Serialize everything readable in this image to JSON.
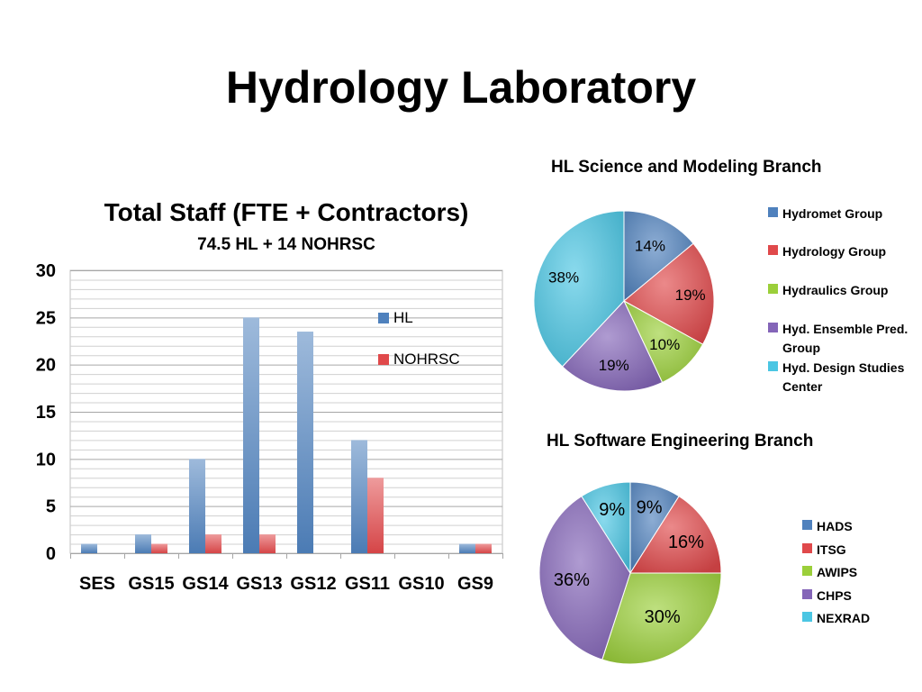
{
  "slide": {
    "title": "Hydrology Laboratory"
  },
  "colors": {
    "blue": "#4f81bd",
    "red": "#e0494b",
    "green": "#9bcf3a",
    "purple": "#8465b8",
    "cyan": "#4bc6e3"
  },
  "chart_data": [
    {
      "type": "bar",
      "title": "Total Staff (FTE + Contractors)",
      "subtitle": "74.5 HL + 14 NOHRSC",
      "categories": [
        "SES",
        "GS15",
        "GS14",
        "GS13",
        "GS12",
        "GS11",
        "GS10",
        "GS9"
      ],
      "series": [
        {
          "name": "HL",
          "color": "#4f81bd",
          "values": [
            1,
            2,
            10,
            25,
            23.5,
            12,
            0,
            1
          ]
        },
        {
          "name": "NOHRSC",
          "color": "#e0494b",
          "values": [
            0,
            1,
            2,
            2,
            0,
            8,
            0,
            1
          ]
        }
      ],
      "ylim": [
        0,
        30
      ],
      "yticks": [
        0,
        5,
        10,
        15,
        20,
        25,
        30
      ],
      "grid": true,
      "legend": "right"
    },
    {
      "type": "pie",
      "title": "HL Science and Modeling Branch",
      "slices": [
        {
          "label": "Hydromet Group",
          "value": 14,
          "text": "14%",
          "color": "#4f81bd"
        },
        {
          "label": "Hydrology Group",
          "value": 19,
          "text": "19%",
          "color": "#e0494b"
        },
        {
          "label": "Hydraulics Group",
          "value": 10,
          "text": "10%",
          "color": "#9bcf3a"
        },
        {
          "label": "Hyd. Ensemble Pred. Group",
          "value": 19,
          "text": "19%",
          "color": "#8465b8"
        },
        {
          "label": "Hyd. Design Studies Center",
          "value": 38,
          "text": "38%",
          "color": "#4bc6e3"
        }
      ],
      "legend": "right"
    },
    {
      "type": "pie",
      "title": "HL Software Engineering Branch",
      "slices": [
        {
          "label": "HADS",
          "value": 9,
          "text": "9%",
          "color": "#4f81bd"
        },
        {
          "label": "ITSG",
          "value": 16,
          "text": "16%",
          "color": "#e0494b"
        },
        {
          "label": "AWIPS",
          "value": 30,
          "text": "30%",
          "color": "#9bcf3a"
        },
        {
          "label": "CHPS",
          "value": 36,
          "text": "36%",
          "color": "#8465b8"
        },
        {
          "label": "NEXRAD",
          "value": 9,
          "text": "9%",
          "color": "#4bc6e3"
        }
      ],
      "legend": "right"
    }
  ]
}
